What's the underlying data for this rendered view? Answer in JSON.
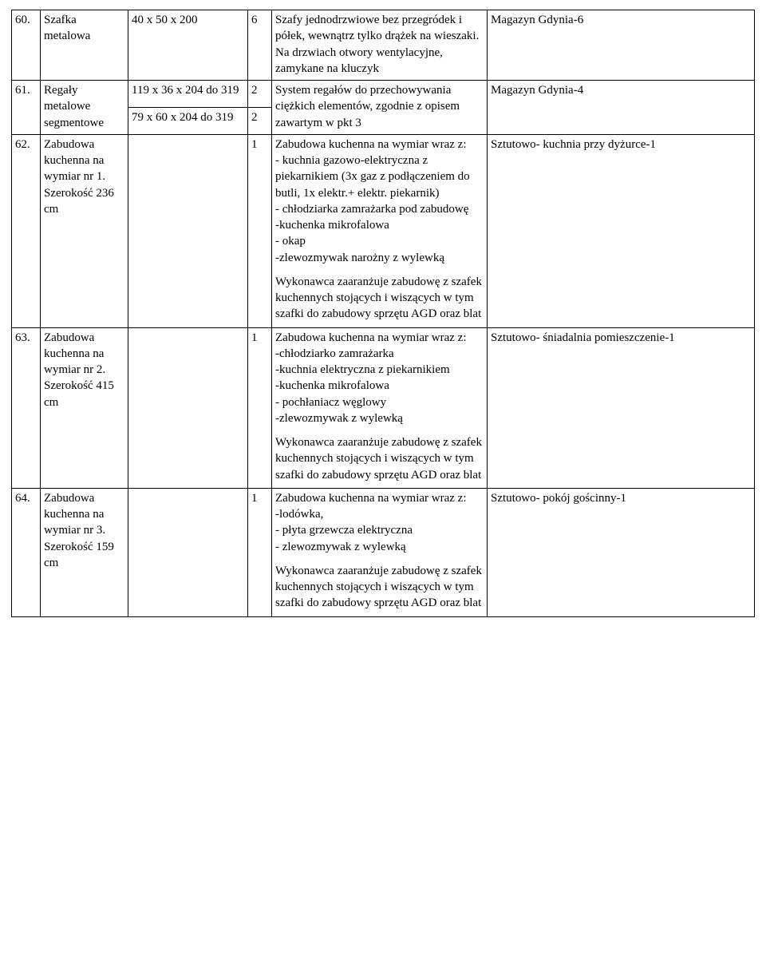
{
  "rows": [
    {
      "num": "60.",
      "name": "Szafka metalowa",
      "dims": [
        "40 x 50 x 200"
      ],
      "qty": [
        "6"
      ],
      "desc": "Szafy jednodrzwiowe bez przegródek i półek, wewnątrz tylko drążek na wieszaki. Na drzwiach otwory wentylacyjne, zamykane na kluczyk",
      "loc": "Magazyn Gdynia-6"
    },
    {
      "num": "61.",
      "name": "Regały metalowe segmentowe",
      "dims": [
        "119 x 36 x 204 do 319",
        "79 x 60 x 204 do 319"
      ],
      "qty": [
        "2",
        "2"
      ],
      "desc": "System regałów do przechowywania ciężkich elementów, zgodnie z opisem zawartym w pkt 3",
      "loc": "Magazyn Gdynia-4"
    },
    {
      "num": "62.",
      "name": "Zabudowa kuchenna na wymiar nr 1. Szerokość 236 cm",
      "dims": [
        ""
      ],
      "qty": [
        "1"
      ],
      "desc_blocks": [
        "Zabudowa kuchenna na wymiar wraz z:\n- kuchnia gazowo-elektryczna z piekarnikiem (3x gaz z podłączeniem do butli, 1x elektr.+ elektr. piekarnik)\n- chłodziarka zamrażarka pod zabudowę\n-kuchenka mikrofalowa\n- okap\n-zlewozmywak narożny z wylewką",
        "Wykonawca zaaranżuje zabudowę z szafek kuchennych stojących i wiszących w tym szafki do zabudowy sprzętu AGD oraz blat"
      ],
      "loc": "Sztutowo- kuchnia przy dyżurce-1"
    },
    {
      "num": "63.",
      "name": "Zabudowa kuchenna na wymiar nr 2. Szerokość 415 cm",
      "dims": [
        ""
      ],
      "qty": [
        "1"
      ],
      "desc_blocks": [
        "Zabudowa kuchenna na wymiar wraz z:\n-chłodziarko zamrażarka\n-kuchnia elektryczna z piekarnikiem\n-kuchenka mikrofalowa\n- pochłaniacz węglowy\n-zlewozmywak z wylewką",
        "Wykonawca zaaranżuje zabudowę z szafek kuchennych stojących i wiszących w tym szafki do zabudowy sprzętu AGD oraz blat"
      ],
      "loc": "Sztutowo- śniadalnia pomieszczenie-1"
    },
    {
      "num": "64.",
      "name": "Zabudowa kuchenna na wymiar nr 3. Szerokość 159 cm",
      "dims": [
        ""
      ],
      "qty": [
        "1"
      ],
      "desc_blocks": [
        "Zabudowa kuchenna na wymiar wraz z:\n-lodówka,\n- płyta grzewcza elektryczna\n- zlewozmywak z wylewką",
        "Wykonawca zaaranżuje zabudowę z szafek kuchennych stojących i wiszących w tym szafki do zabudowy sprzętu AGD oraz blat"
      ],
      "loc": "Sztutowo- pokój gościnny-1"
    }
  ]
}
